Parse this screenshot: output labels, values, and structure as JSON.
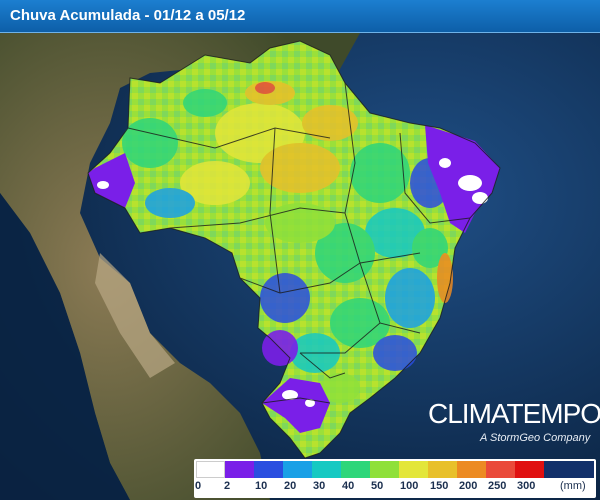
{
  "header": {
    "title": "Chuva Acumulada - 01/12 a 05/12"
  },
  "brand": {
    "name": "CLIMATEMPO",
    "tagline": "A StormGeo Company"
  },
  "legend": {
    "unit": "(mm)",
    "ticks": [
      "0",
      "2",
      "10",
      "20",
      "30",
      "40",
      "50",
      "100",
      "150",
      "200",
      "250",
      "300"
    ],
    "colors": [
      "#ffffff",
      "#7a1fe8",
      "#2a4ee0",
      "#1aa0e6",
      "#16c9c2",
      "#2ed67a",
      "#8fe03a",
      "#e3e63a",
      "#e8c02a",
      "#ec8a22",
      "#ea4a3a",
      "#e01010",
      "#12306a"
    ]
  }
}
